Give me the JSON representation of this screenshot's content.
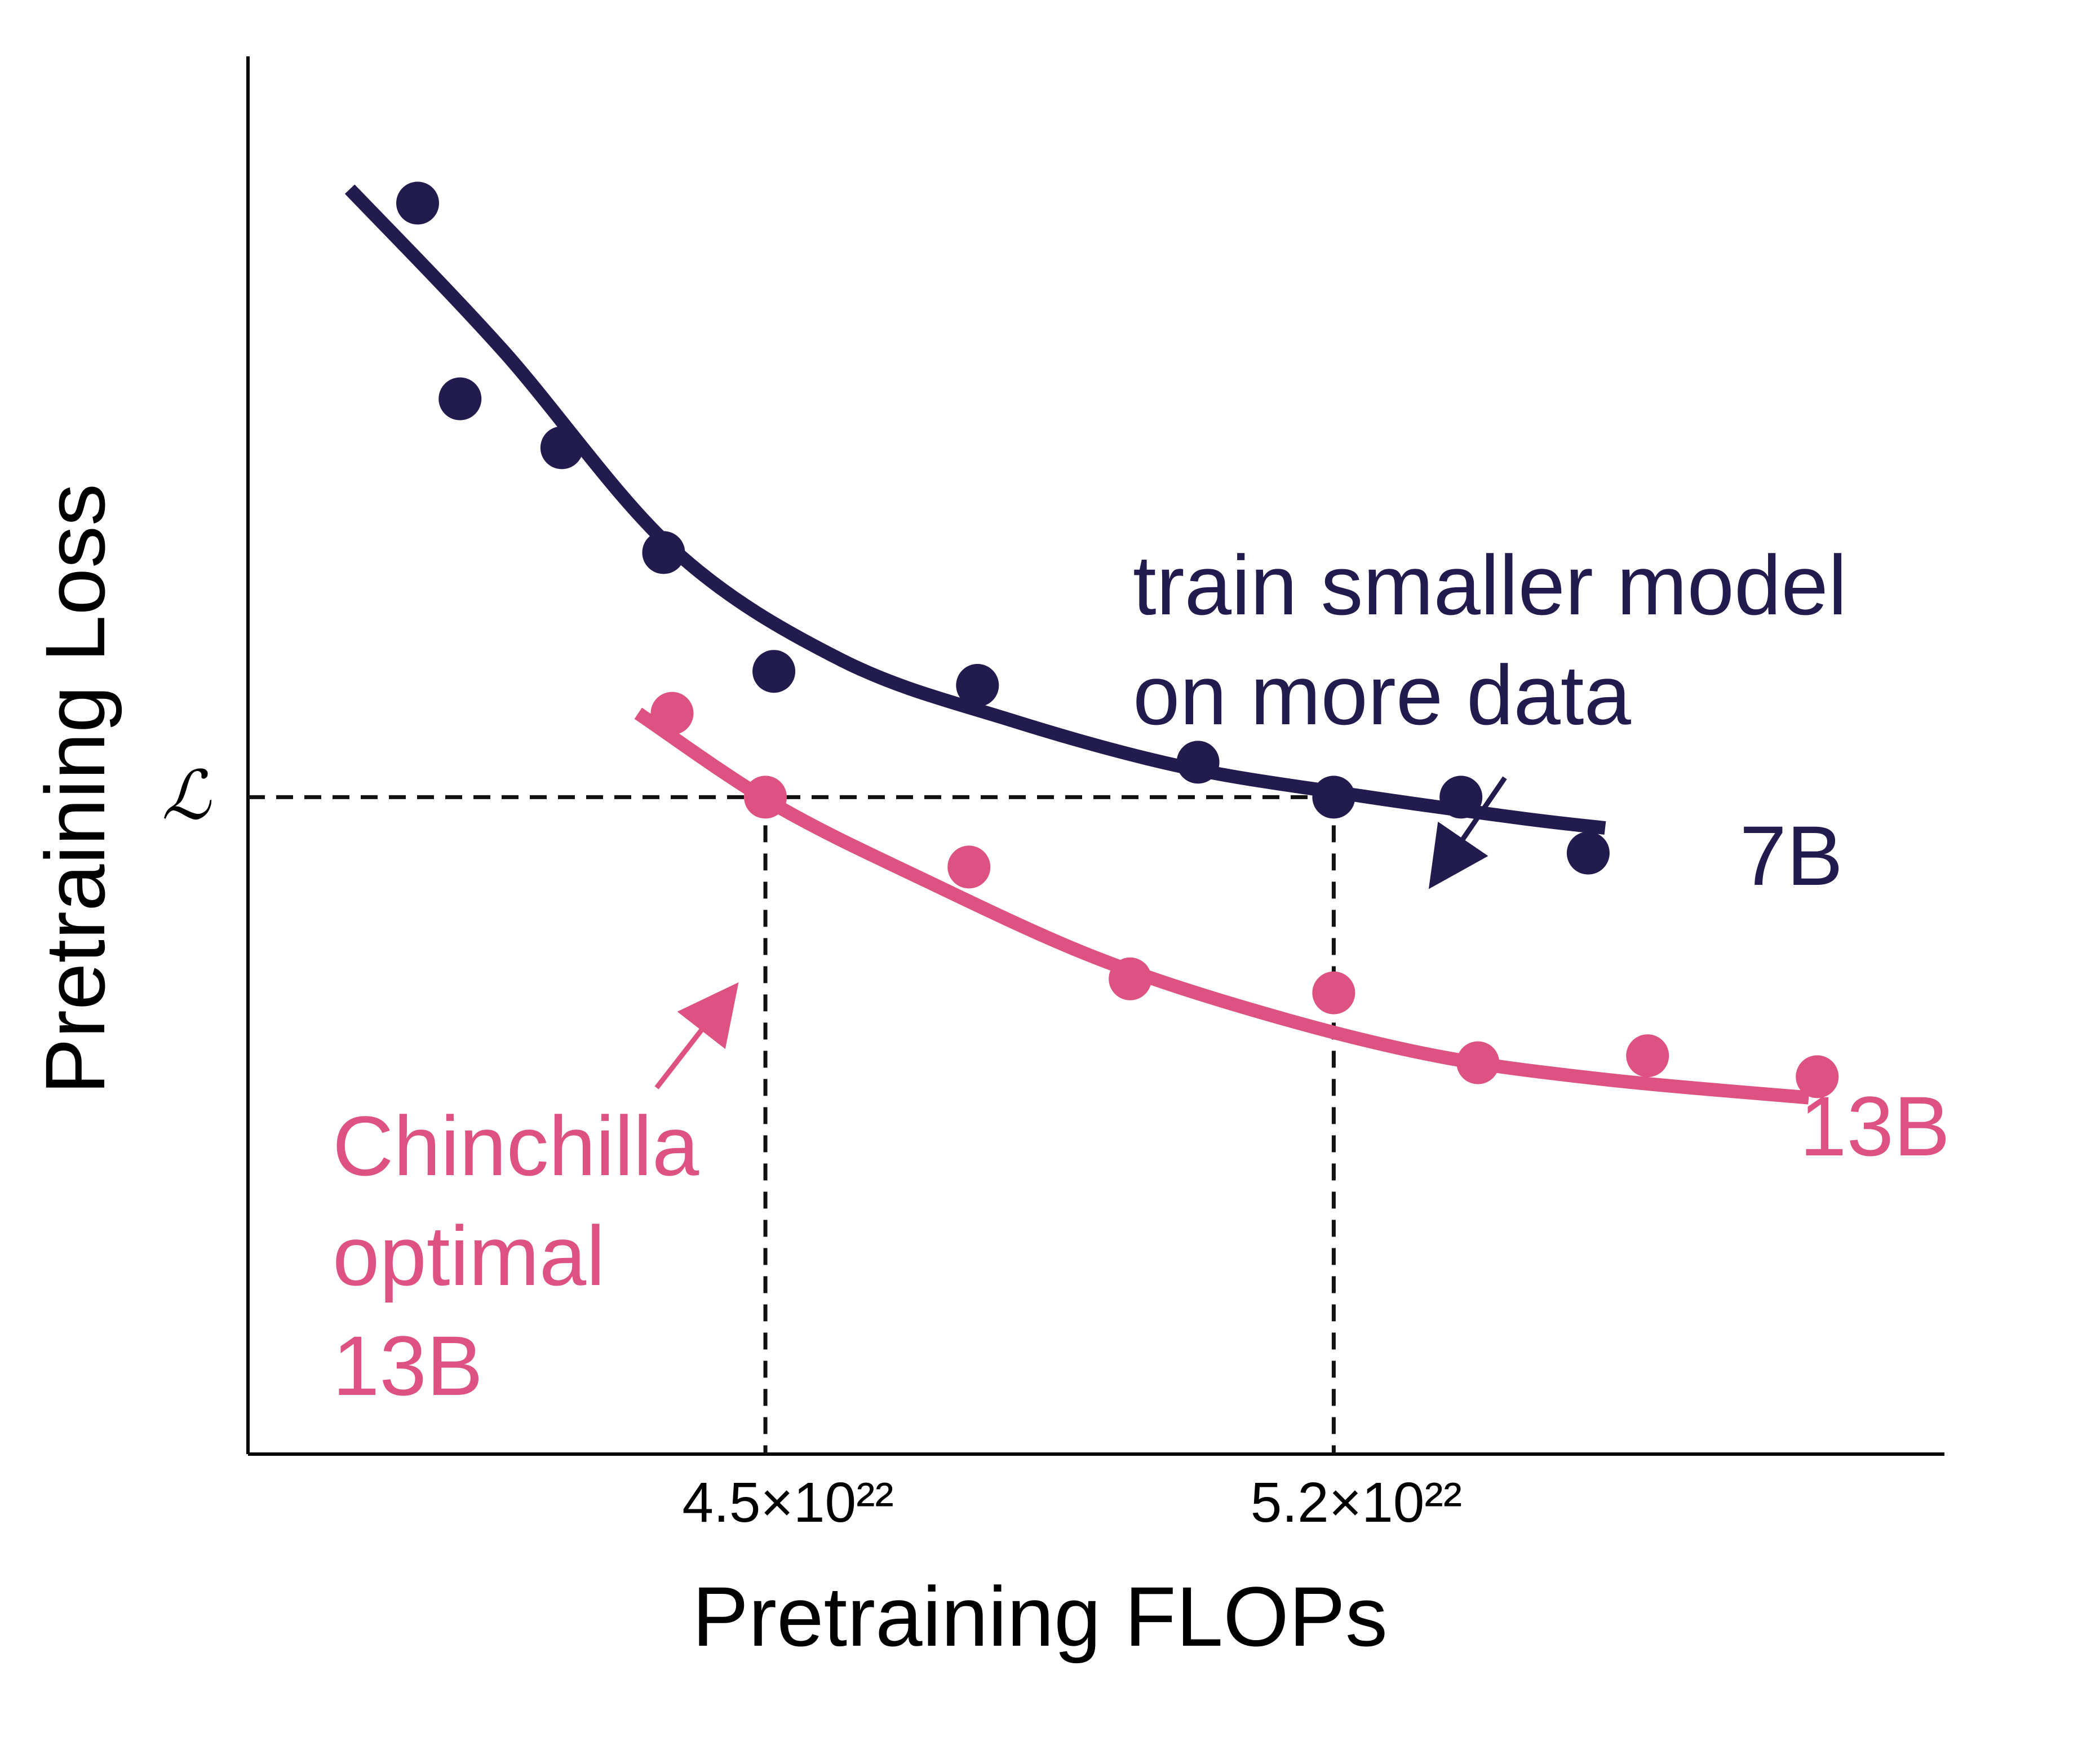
{
  "chart_data": {
    "type": "scatter",
    "xlabel": "Pretraining FLOPs",
    "ylabel": "Pretraining Loss",
    "x_ticks": [
      "4.5×10²²",
      "5.2×10²²"
    ],
    "y_marker": "ℒ",
    "colors": {
      "axis": "#000000",
      "series_7b": "#211c4d",
      "series_13b": "#dd5283",
      "guide": "#111111"
    },
    "series": [
      {
        "name": "7B",
        "color": "#211c4d",
        "points": [
          [
            1.0,
            8.95
          ],
          [
            1.25,
            7.55
          ],
          [
            1.85,
            7.2
          ],
          [
            2.45,
            6.45
          ],
          [
            3.1,
            5.6
          ],
          [
            4.3,
            5.5
          ],
          [
            5.6,
            4.95
          ],
          [
            6.4,
            4.7
          ],
          [
            7.15,
            4.7
          ],
          [
            7.9,
            4.3
          ]
        ],
        "fit": [
          [
            0.6,
            9.05
          ],
          [
            1.5,
            7.9
          ],
          [
            2.5,
            6.48
          ],
          [
            3.5,
            5.68
          ],
          [
            4.5,
            5.25
          ],
          [
            5.5,
            4.92
          ],
          [
            6.5,
            4.72
          ],
          [
            7.5,
            4.55
          ],
          [
            8.0,
            4.48
          ]
        ]
      },
      {
        "name": "13B",
        "color": "#dd5283",
        "points": [
          [
            2.5,
            5.3
          ],
          [
            3.05,
            4.7
          ],
          [
            4.25,
            4.2
          ],
          [
            5.2,
            3.4
          ],
          [
            6.4,
            3.3
          ],
          [
            7.25,
            2.8
          ],
          [
            8.25,
            2.85
          ],
          [
            9.25,
            2.7
          ]
        ],
        "fit": [
          [
            2.3,
            5.3
          ],
          [
            3.1,
            4.65
          ],
          [
            4.0,
            4.1
          ],
          [
            5.0,
            3.55
          ],
          [
            6.0,
            3.15
          ],
          [
            7.0,
            2.85
          ],
          [
            8.0,
            2.68
          ],
          [
            9.2,
            2.55
          ]
        ]
      }
    ],
    "reference_line": {
      "label": "ℒ",
      "y": 4.7,
      "x_13b": 3.05,
      "x_7b": 6.4
    },
    "annotations": [
      {
        "id": "train-smaller",
        "text_lines": [
          "train smaller model",
          "on more data"
        ],
        "series": "7B"
      },
      {
        "id": "chinchilla",
        "text_lines": [
          "Chinchilla",
          "optimal",
          "13B"
        ],
        "series": "13B"
      }
    ]
  }
}
